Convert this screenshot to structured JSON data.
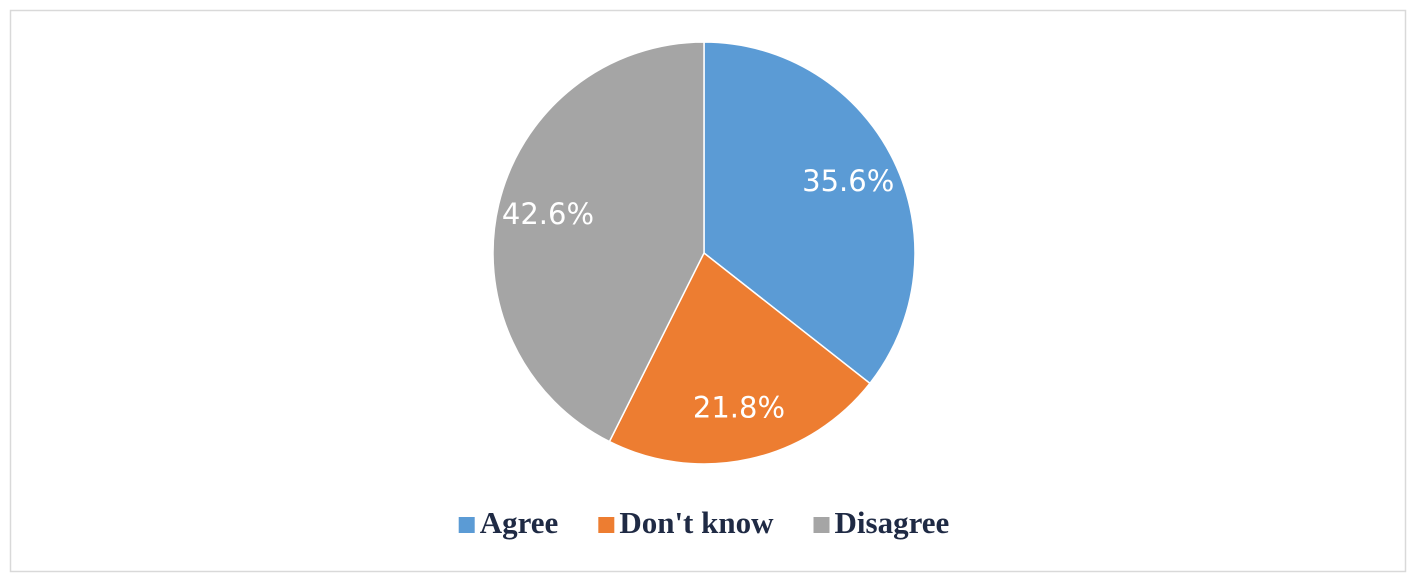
{
  "chart_data": {
    "type": "pie",
    "categories": [
      "Agree",
      "Don't know",
      "Disagree"
    ],
    "values": [
      35.6,
      21.8,
      42.6
    ],
    "value_labels": [
      "35.6%",
      "21.8%",
      "42.6%"
    ],
    "colors": [
      "#5b9bd5",
      "#ed7d31",
      "#a5a5a5"
    ],
    "legend": "bottom"
  }
}
